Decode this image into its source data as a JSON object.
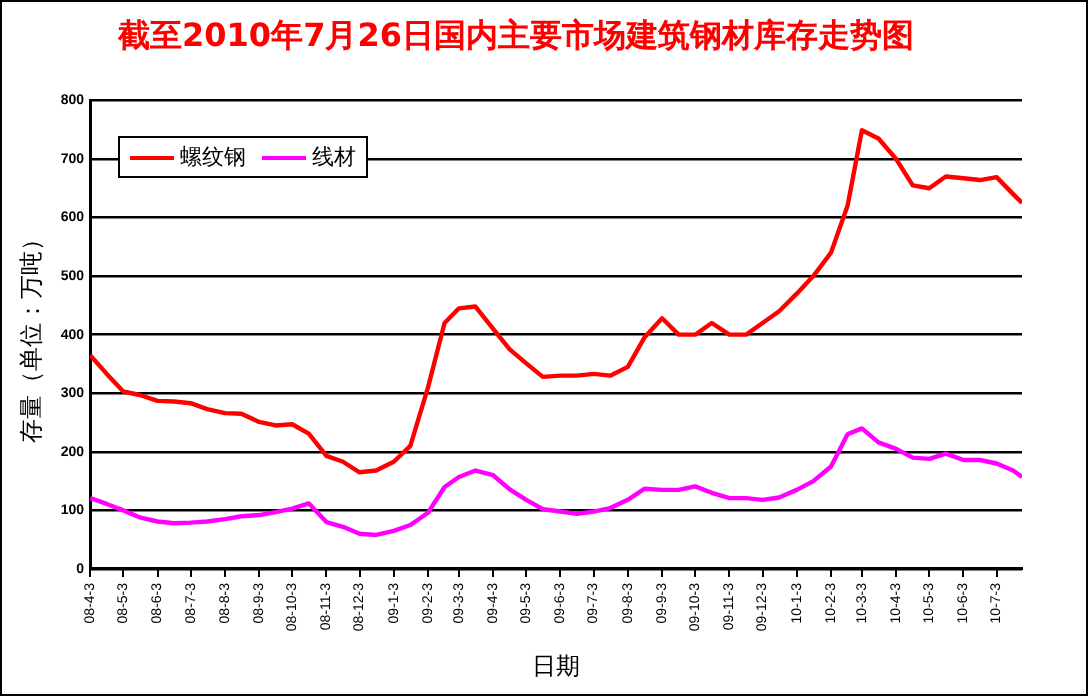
{
  "chart_data": {
    "type": "line",
    "title": "截至2010年7月26日国内主要市场建筑钢材库存走势图",
    "xlabel": "日期",
    "ylabel": "存量（单位：万吨）",
    "x": [
      "2008-04-03",
      "2008-04-18",
      "2008-05-03",
      "2008-05-18",
      "2008-06-03",
      "2008-06-18",
      "2008-07-03",
      "2008-07-18",
      "2008-08-03",
      "2008-08-18",
      "2008-09-03",
      "2008-09-18",
      "2008-10-03",
      "2008-10-18",
      "2008-11-03",
      "2008-11-18",
      "2008-12-03",
      "2008-12-18",
      "2009-01-03",
      "2009-01-18",
      "2009-02-03",
      "2009-02-18",
      "2009-03-03",
      "2009-03-18",
      "2009-04-03",
      "2009-04-18",
      "2009-05-03",
      "2009-05-18",
      "2009-06-03",
      "2009-06-18",
      "2009-07-03",
      "2009-07-18",
      "2009-08-03",
      "2009-08-18",
      "2009-09-03",
      "2009-09-18",
      "2009-10-03",
      "2009-10-18",
      "2009-11-03",
      "2009-11-18",
      "2009-12-03",
      "2009-12-18",
      "2010-01-03",
      "2010-01-18",
      "2010-02-03",
      "2010-02-18",
      "2010-03-03",
      "2010-03-18",
      "2010-04-03",
      "2010-04-18",
      "2010-05-03",
      "2010-05-18",
      "2010-06-03",
      "2010-06-18",
      "2010-07-03",
      "2010-07-18",
      "2010-07-26"
    ],
    "series": [
      {
        "name": "螺纹钢",
        "color": "#ff0000",
        "values": [
          365,
          333,
          303,
          297,
          287,
          286,
          283,
          273,
          266,
          265,
          251,
          245,
          247,
          231,
          193,
          183,
          165,
          168,
          183,
          210,
          310,
          420,
          445,
          448,
          410,
          375,
          351,
          328,
          330,
          330,
          333,
          330,
          345,
          395,
          428,
          400,
          400,
          420,
          400,
          400,
          420,
          440,
          470,
          500,
          540,
          620,
          749,
          735,
          700,
          655,
          650,
          670,
          667,
          664,
          669,
          640,
          625
        ]
      },
      {
        "name": "线材",
        "color": "#ff00ff",
        "values": [
          121,
          111,
          100,
          88,
          81,
          78,
          79,
          81,
          85,
          90,
          92,
          97,
          103,
          112,
          80,
          72,
          60,
          58,
          65,
          75,
          96,
          140,
          157,
          168,
          160,
          136,
          118,
          102,
          98,
          94,
          98,
          104,
          118,
          137,
          135,
          135,
          141,
          130,
          121,
          121,
          118,
          122,
          135,
          150,
          175,
          230,
          240,
          216,
          205,
          190,
          188,
          197,
          186,
          186,
          180,
          168,
          157
        ]
      }
    ],
    "xlim": [
      "2008-04-03",
      "2010-07-26"
    ],
    "xticks": [
      {
        "value": "2008-04-03",
        "label": "08-4-3"
      },
      {
        "value": "2008-05-03",
        "label": "08-5-3"
      },
      {
        "value": "2008-06-03",
        "label": "08-6-3"
      },
      {
        "value": "2008-07-03",
        "label": "08-7-3"
      },
      {
        "value": "2008-08-03",
        "label": "08-8-3"
      },
      {
        "value": "2008-09-03",
        "label": "08-9-3"
      },
      {
        "value": "2008-10-03",
        "label": "08-10-3"
      },
      {
        "value": "2008-11-03",
        "label": "08-11-3"
      },
      {
        "value": "2008-12-03",
        "label": "08-12-3"
      },
      {
        "value": "2009-01-03",
        "label": "09-1-3"
      },
      {
        "value": "2009-02-03",
        "label": "09-2-3"
      },
      {
        "value": "2009-03-03",
        "label": "09-3-3"
      },
      {
        "value": "2009-04-03",
        "label": "09-4-3"
      },
      {
        "value": "2009-05-03",
        "label": "09-5-3"
      },
      {
        "value": "2009-06-03",
        "label": "09-6-3"
      },
      {
        "value": "2009-07-03",
        "label": "09-7-3"
      },
      {
        "value": "2009-08-03",
        "label": "09-8-3"
      },
      {
        "value": "2009-09-03",
        "label": "09-9-3"
      },
      {
        "value": "2009-10-03",
        "label": "09-10-3"
      },
      {
        "value": "2009-11-03",
        "label": "09-11-3"
      },
      {
        "value": "2009-12-03",
        "label": "09-12-3"
      },
      {
        "value": "2010-01-03",
        "label": "10-1-3"
      },
      {
        "value": "2010-02-03",
        "label": "10-2-3"
      },
      {
        "value": "2010-03-03",
        "label": "10-3-3"
      },
      {
        "value": "2010-04-03",
        "label": "10-4-3"
      },
      {
        "value": "2010-05-03",
        "label": "10-5-3"
      },
      {
        "value": "2010-06-03",
        "label": "10-6-3"
      },
      {
        "value": "2010-07-03",
        "label": "10-7-3"
      }
    ],
    "ylim": [
      0,
      800
    ],
    "yticks": [
      0,
      100,
      200,
      300,
      400,
      500,
      600,
      700,
      800
    ],
    "grid": "y",
    "legend": "top left",
    "marker": "none",
    "line_style": "solid"
  }
}
